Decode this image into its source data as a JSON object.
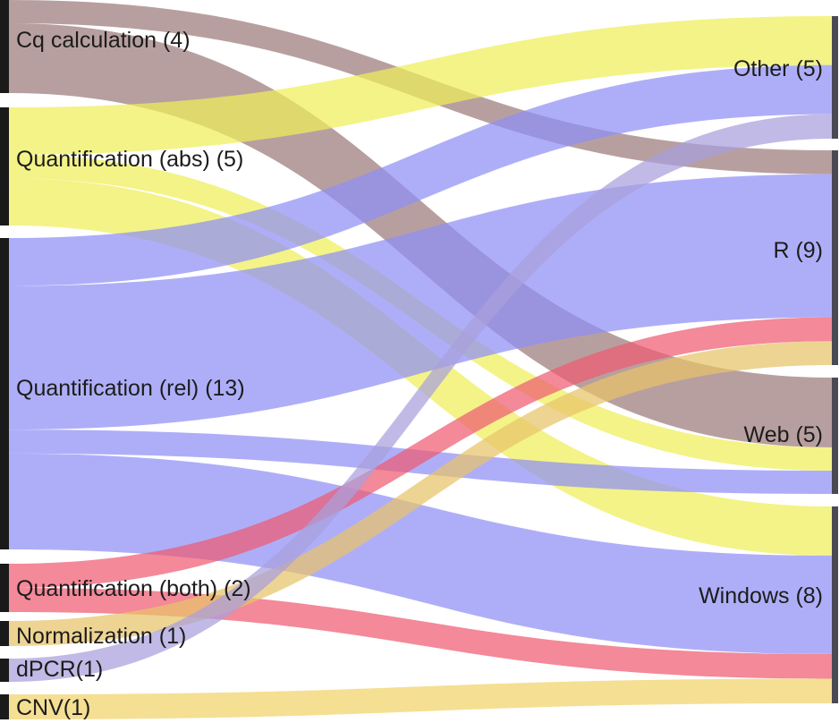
{
  "colors": {
    "cq": "#9d7a7a",
    "abs": "#eeee5a",
    "rel": "#8f8ff5",
    "both": "#ee5c72",
    "norm": "#e8c36a",
    "dpcr": "#a9a0dc",
    "cnv": "#f1d36a",
    "node_bar": "#1a1a1a"
  },
  "sources": [
    {
      "id": "cq",
      "label": "Cq calculation (4)",
      "count": 4
    },
    {
      "id": "abs",
      "label": "Quantification (abs) (5)",
      "count": 5
    },
    {
      "id": "rel",
      "label": "Quantification (rel) (13)",
      "count": 13
    },
    {
      "id": "both",
      "label": "Quantification (both) (2)",
      "count": 2
    },
    {
      "id": "norm",
      "label": "Normalization (1)",
      "count": 1
    },
    {
      "id": "dpcr",
      "label": "dPCR(1)",
      "count": 1
    },
    {
      "id": "cnv",
      "label": "CNV(1)",
      "count": 1
    }
  ],
  "targets": [
    {
      "id": "other",
      "label": "Other (5)",
      "count": 5
    },
    {
      "id": "r",
      "label": "R (9)",
      "count": 9
    },
    {
      "id": "web",
      "label": "Web (5)",
      "count": 5
    },
    {
      "id": "windows",
      "label": "Windows (8)",
      "count": 8
    }
  ],
  "flows": [
    {
      "source": "cq",
      "target": "r",
      "value": 1
    },
    {
      "source": "cq",
      "target": "web",
      "value": 3
    },
    {
      "source": "abs",
      "target": "other",
      "value": 2
    },
    {
      "source": "abs",
      "target": "web",
      "value": 1
    },
    {
      "source": "abs",
      "target": "windows",
      "value": 2
    },
    {
      "source": "rel",
      "target": "other",
      "value": 2
    },
    {
      "source": "rel",
      "target": "r",
      "value": 6
    },
    {
      "source": "rel",
      "target": "web",
      "value": 1
    },
    {
      "source": "rel",
      "target": "windows",
      "value": 4
    },
    {
      "source": "both",
      "target": "r",
      "value": 1
    },
    {
      "source": "both",
      "target": "windows",
      "value": 1
    },
    {
      "source": "norm",
      "target": "r",
      "value": 1
    },
    {
      "source": "dpcr",
      "target": "other",
      "value": 1
    },
    {
      "source": "cnv",
      "target": "windows",
      "value": 1
    }
  ]
}
